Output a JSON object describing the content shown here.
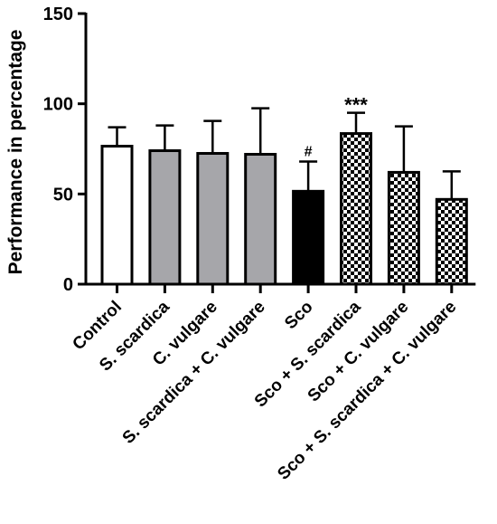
{
  "chart_data": {
    "type": "bar",
    "title": "",
    "xlabel": "",
    "ylabel": "Performance in percentage",
    "ylim": [
      0,
      150
    ],
    "yticks": [
      "0",
      "50",
      "100",
      "150"
    ],
    "grid": false,
    "categories": [
      "Control",
      "S. scardica",
      "C. vulgare",
      "S. scardica + C. vulgare",
      "Sco",
      "Sco + S. scardica",
      "Sco + C. vulgare",
      "Sco + S. scardica + C. vulgare"
    ],
    "values": [
      76.5,
      74,
      72.5,
      72,
      51.5,
      83.5,
      62,
      47
    ],
    "error_upper": [
      87,
      88,
      90.5,
      97.5,
      68,
      95,
      87.5,
      62.5
    ],
    "fills": [
      "white",
      "gray",
      "gray",
      "gray",
      "black",
      "checker",
      "checker",
      "checker"
    ],
    "annotations": [
      {
        "category": "Sco",
        "text": "#"
      },
      {
        "category": "Sco + S. scardica",
        "text": "***"
      }
    ],
    "colors": {
      "gray": "#a6a6aa",
      "black": "#000000",
      "white": "#ffffff"
    }
  }
}
